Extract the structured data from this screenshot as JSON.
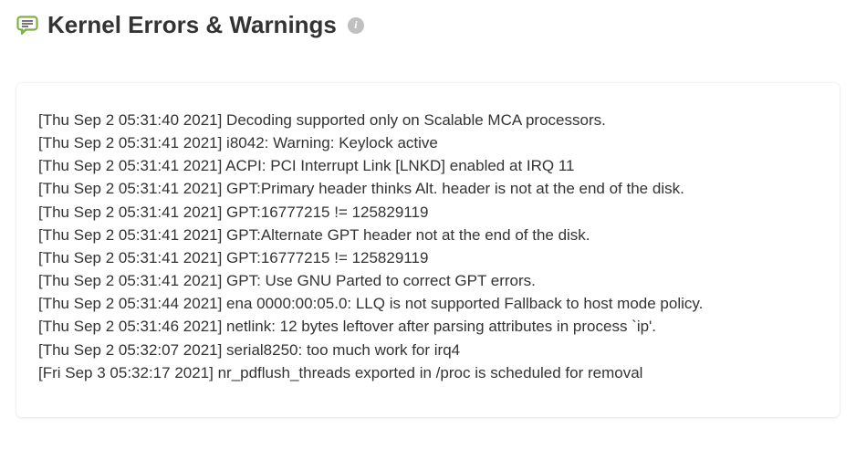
{
  "header": {
    "title": "Kernel Errors & Warnings",
    "speech_icon_color": "#7cb342",
    "speech_icon_dash_color": "#555555",
    "info_icon_bg": "#c0c0c0",
    "info_icon_text": "i"
  },
  "panel": {
    "background_color": "#ffffff",
    "text_color": "#333333",
    "font_size": 17,
    "line_height": 1.48
  },
  "logs": [
    "[Thu Sep 2 05:31:40 2021] Decoding supported only on Scalable MCA processors.",
    "[Thu Sep 2 05:31:41 2021] i8042: Warning: Keylock active",
    "[Thu Sep 2 05:31:41 2021] ACPI: PCI Interrupt Link [LNKD] enabled at IRQ 11",
    "[Thu Sep 2 05:31:41 2021] GPT:Primary header thinks Alt. header is not at the end of the disk.",
    "[Thu Sep 2 05:31:41 2021] GPT:16777215 != 125829119",
    "[Thu Sep 2 05:31:41 2021] GPT:Alternate GPT header not at the end of the disk.",
    "[Thu Sep 2 05:31:41 2021] GPT:16777215 != 125829119",
    "[Thu Sep 2 05:31:41 2021] GPT: Use GNU Parted to correct GPT errors.",
    "[Thu Sep 2 05:31:44 2021] ena 0000:00:05.0: LLQ is not supported Fallback to host mode policy.",
    "[Thu Sep 2 05:31:46 2021] netlink: 12 bytes leftover after parsing attributes in process `ip'.",
    "[Thu Sep 2 05:32:07 2021] serial8250: too much work for irq4",
    "[Fri Sep 3 05:32:17 2021] nr_pdflush_threads exported in /proc is scheduled for removal"
  ]
}
